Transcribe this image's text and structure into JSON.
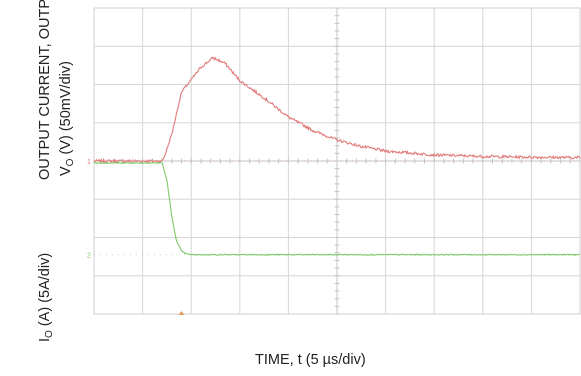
{
  "chart_data": {
    "type": "line",
    "xlabel": "TIME, t (5 µs/div)",
    "ylabel_line1": "OUTPUT CURRENT,  OUTPUT VOLTAGE",
    "ylabel_vo_prefix": "V",
    "ylabel_vo_sub": "O",
    "ylabel_vo_suffix": " (V) (50mV/div)",
    "ylabel_io_prefix": "I",
    "ylabel_io_sub": "O",
    "ylabel_io_suffix": " (A) (5A/div)",
    "grid": true,
    "x_divisions": 10,
    "y_divisions": 8,
    "x_unit_per_div": "5 µs",
    "channel_markers": [
      "1",
      "2"
    ],
    "series": [
      {
        "color": "#e07a78",
        "channel": "1",
        "baseline_div": 4.0,
        "x_div": [
          0,
          1.4,
          1.45,
          1.6,
          1.8,
          2.2,
          2.45,
          2.7,
          3.0,
          3.5,
          4.0,
          4.5,
          5.0,
          5.5,
          6.0,
          7.0,
          8.0,
          9.0,
          10.0
        ],
        "y_div": [
          0.0,
          0.0,
          0.12,
          0.7,
          1.8,
          2.45,
          2.7,
          2.55,
          2.1,
          1.65,
          1.15,
          0.8,
          0.55,
          0.38,
          0.26,
          0.16,
          0.12,
          0.1,
          0.09
        ]
      },
      {
        "color": "#7ec96a",
        "channel": "2",
        "baseline_div": 1.55,
        "x_div": [
          0,
          1.4,
          1.5,
          1.6,
          1.7,
          1.8,
          1.9,
          2.0,
          10.0
        ],
        "y_div": [
          2.4,
          2.4,
          1.95,
          1.0,
          0.35,
          0.1,
          0.02,
          0.0,
          0.0
        ]
      }
    ]
  }
}
